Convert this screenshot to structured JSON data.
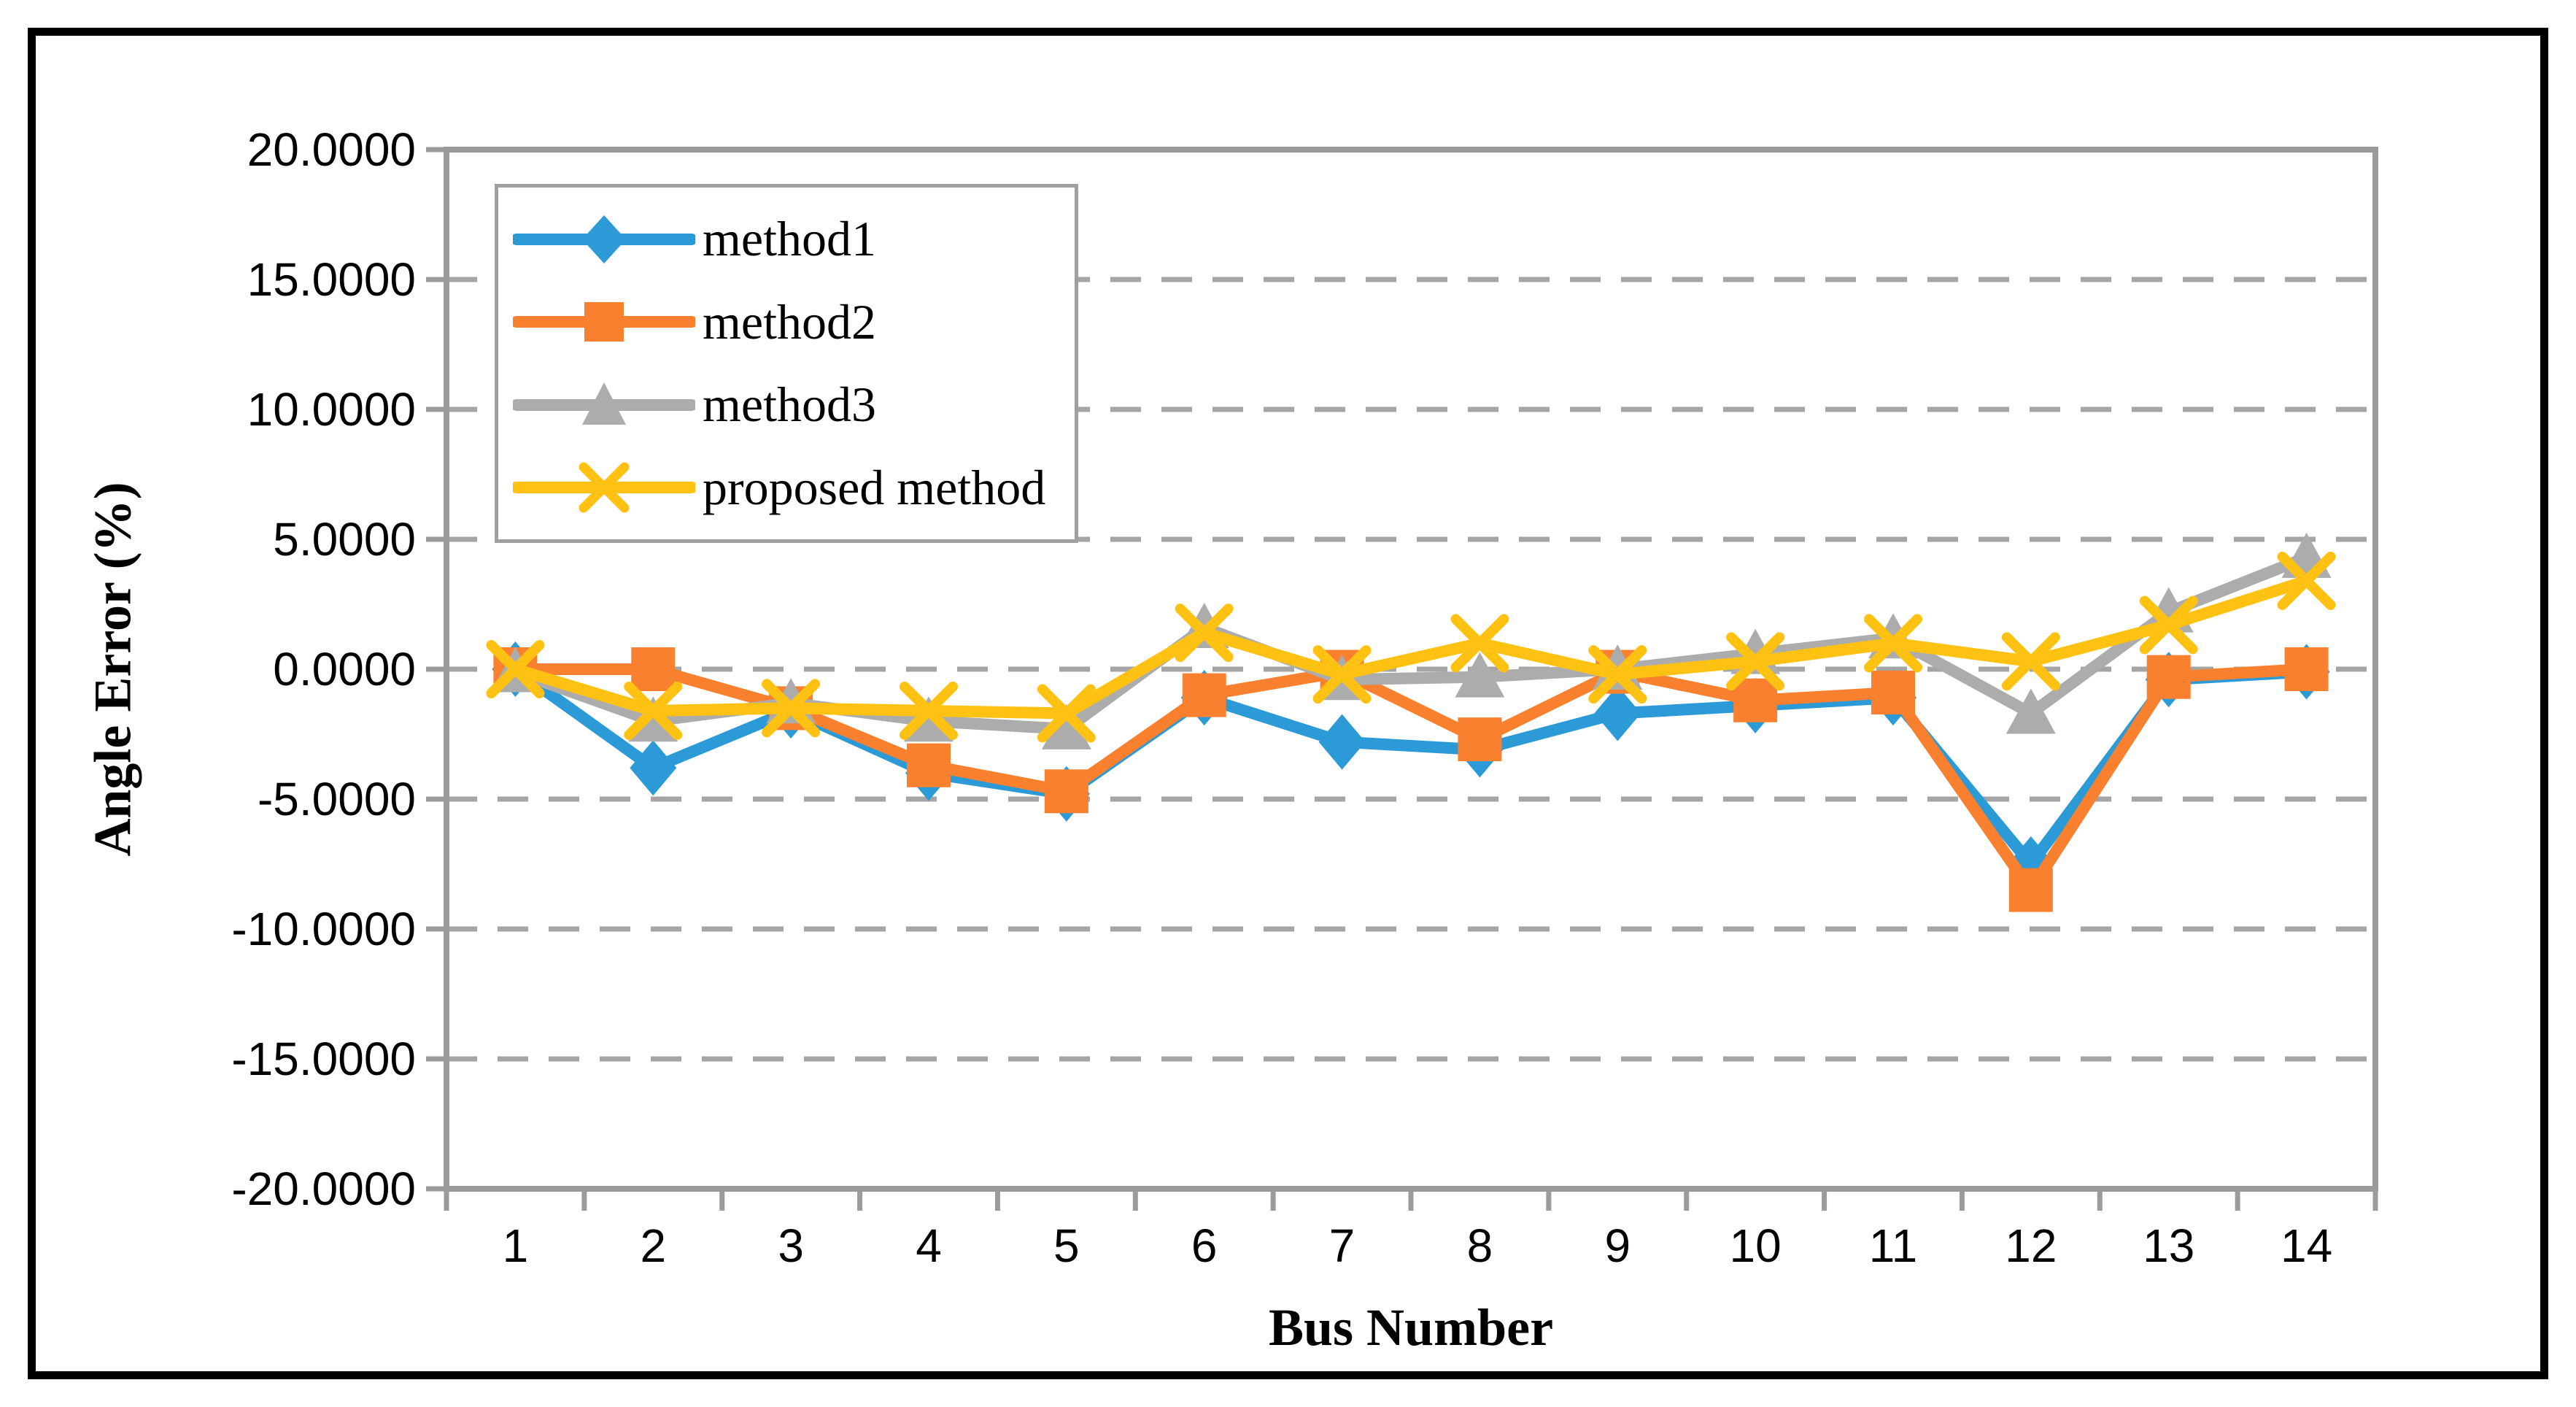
{
  "chart_data": {
    "type": "line",
    "title": "",
    "xlabel": "Bus Number",
    "ylabel": "Angle Error (%)",
    "categories": [
      "1",
      "2",
      "3",
      "4",
      "5",
      "6",
      "7",
      "8",
      "9",
      "10",
      "11",
      "12",
      "13",
      "14"
    ],
    "ylim": [
      -20,
      20
    ],
    "ytick_step": 5,
    "ytick_labels": [
      "20.0000",
      "15.0000",
      "10.0000",
      "5.0000",
      "0.0000",
      "-5.0000",
      "-10.0000",
      "-15.0000",
      "-20.0000"
    ],
    "grid": "dashed-horizontal-major",
    "legend_position": "inside-top-left",
    "series": [
      {
        "name": "method1",
        "color": "#2b9ad7",
        "marker": "diamond",
        "values": [
          0.0,
          -3.8,
          -1.6,
          -4.0,
          -4.8,
          -1.1,
          -2.8,
          -3.1,
          -1.7,
          -1.4,
          -1.1,
          -7.5,
          -0.4,
          -0.1
        ]
      },
      {
        "name": "method2",
        "color": "#f8802e",
        "marker": "square",
        "values": [
          0.0,
          0.0,
          -1.5,
          -3.7,
          -4.7,
          -1.0,
          -0.1,
          -2.7,
          -0.1,
          -1.2,
          -0.9,
          -8.5,
          -0.3,
          0.0
        ]
      },
      {
        "name": "method3",
        "color": "#acacac",
        "marker": "triangle",
        "values": [
          -0.1,
          -2.0,
          -1.3,
          -2.0,
          -2.3,
          1.6,
          -0.4,
          -0.3,
          0.0,
          0.6,
          1.2,
          -1.7,
          2.2,
          4.3
        ]
      },
      {
        "name": "proposed method",
        "color": "#ffc213",
        "marker": "x",
        "values": [
          0.0,
          -1.6,
          -1.5,
          -1.6,
          -1.7,
          1.4,
          -0.2,
          1.0,
          -0.2,
          0.3,
          1.0,
          0.3,
          1.7,
          3.4
        ]
      }
    ],
    "colors": {
      "axis_line": "#9b9b9b",
      "gridline": "#a5a5a5",
      "tick": "#9b9b9b",
      "text": "#000000",
      "legend_border": "#a0a0a0",
      "frame_border": "#000000"
    }
  }
}
